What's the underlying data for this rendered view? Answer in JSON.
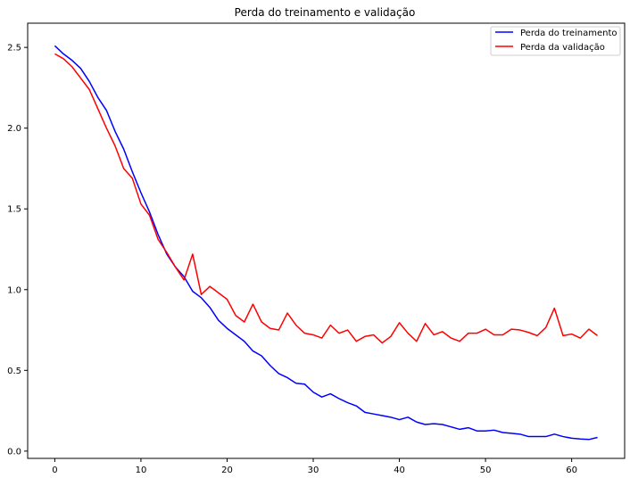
{
  "chart_data": {
    "type": "line",
    "title": "Perda do treinamento e validação",
    "xlabel": "",
    "ylabel": "",
    "xlim": [
      -3.15,
      66.15
    ],
    "ylim": [
      -0.045,
      2.65
    ],
    "xticks": [
      0,
      10,
      20,
      30,
      40,
      50,
      60
    ],
    "yticks": [
      0.0,
      0.5,
      1.0,
      1.5,
      2.0,
      2.5
    ],
    "xtick_labels": [
      "0",
      "10",
      "20",
      "30",
      "40",
      "50",
      "60"
    ],
    "ytick_labels": [
      "0.0",
      "0.5",
      "1.0",
      "1.5",
      "2.0",
      "2.5"
    ],
    "grid": false,
    "legend_position": "top-right",
    "x": [
      0,
      1,
      2,
      3,
      4,
      5,
      6,
      7,
      8,
      9,
      10,
      11,
      12,
      13,
      14,
      15,
      16,
      17,
      18,
      19,
      20,
      21,
      22,
      23,
      24,
      25,
      26,
      27,
      28,
      29,
      30,
      31,
      32,
      33,
      34,
      35,
      36,
      37,
      38,
      39,
      40,
      41,
      42,
      43,
      44,
      45,
      46,
      47,
      48,
      49,
      50,
      51,
      52,
      53,
      54,
      55,
      56,
      57,
      58,
      59,
      60,
      61,
      62,
      63
    ],
    "series": [
      {
        "name": "Perda do treinamento",
        "color": "#0000ff",
        "values": [
          2.51,
          2.46,
          2.42,
          2.37,
          2.29,
          2.19,
          2.11,
          1.98,
          1.87,
          1.73,
          1.6,
          1.48,
          1.34,
          1.22,
          1.14,
          1.08,
          0.99,
          0.95,
          0.89,
          0.81,
          0.76,
          0.72,
          0.68,
          0.62,
          0.59,
          0.53,
          0.48,
          0.455,
          0.42,
          0.415,
          0.365,
          0.335,
          0.355,
          0.325,
          0.3,
          0.28,
          0.24,
          0.23,
          0.22,
          0.21,
          0.195,
          0.21,
          0.18,
          0.165,
          0.17,
          0.165,
          0.15,
          0.135,
          0.145,
          0.125,
          0.125,
          0.13,
          0.115,
          0.11,
          0.105,
          0.09,
          0.09,
          0.09,
          0.105,
          0.09,
          0.08,
          0.075,
          0.072,
          0.085
        ]
      },
      {
        "name": "Perda da validação",
        "color": "#ff0000",
        "values": [
          2.46,
          2.43,
          2.38,
          2.31,
          2.24,
          2.12,
          2.0,
          1.89,
          1.75,
          1.69,
          1.53,
          1.46,
          1.31,
          1.23,
          1.14,
          1.06,
          1.22,
          0.97,
          1.02,
          0.98,
          0.94,
          0.84,
          0.8,
          0.91,
          0.8,
          0.76,
          0.75,
          0.855,
          0.78,
          0.73,
          0.72,
          0.7,
          0.78,
          0.73,
          0.75,
          0.68,
          0.71,
          0.72,
          0.67,
          0.71,
          0.795,
          0.73,
          0.68,
          0.79,
          0.72,
          0.74,
          0.7,
          0.68,
          0.73,
          0.73,
          0.755,
          0.72,
          0.72,
          0.755,
          0.75,
          0.735,
          0.715,
          0.765,
          0.885,
          0.715,
          0.725,
          0.7,
          0.755,
          0.715
        ]
      }
    ]
  }
}
